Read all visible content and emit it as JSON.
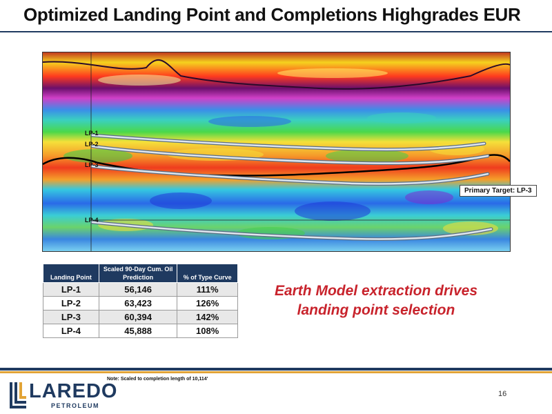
{
  "title": "Optimized Landing Point and Completions Highgrades EUR",
  "figure": {
    "labels": [
      "LP-1",
      "LP-2",
      "LP-3",
      "LP-4"
    ],
    "callout": "Primary Target: LP-3"
  },
  "table": {
    "headers": [
      "Landing Point",
      "Scaled 90-Day Cum. Oil Prediction",
      "% of Type Curve"
    ],
    "rows": [
      {
        "landing_point": "LP-1",
        "cum": "56,146",
        "pct": "111%"
      },
      {
        "landing_point": "LP-2",
        "cum": "63,423",
        "pct": "126%"
      },
      {
        "landing_point": "LP-3",
        "cum": "60,394",
        "pct": "142%"
      },
      {
        "landing_point": "LP-4",
        "cum": "45,888",
        "pct": "108%"
      }
    ]
  },
  "message": {
    "line1": "Earth Model extraction drives",
    "line2": "landing point selection"
  },
  "footer": {
    "note": "Note: Scaled to completion length of 10,114'",
    "logo_name": "LAREDO",
    "logo_sub": "PETROLEUM",
    "page_number": "16"
  },
  "colors": {
    "navy": "#1f3a60",
    "gold": "#e2a437",
    "accent_red": "#c8232c"
  }
}
